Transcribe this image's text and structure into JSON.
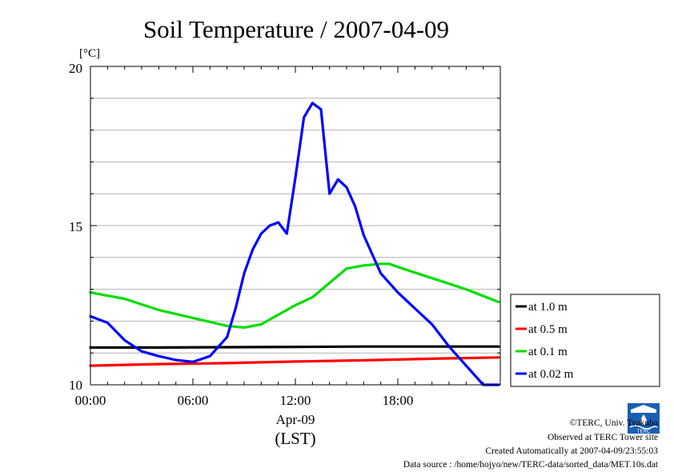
{
  "chart_data": {
    "type": "line",
    "title": "Soil Temperature / 2007-04-09",
    "ylabel": "[°C]",
    "xlabel_date": "Apr-09",
    "xlabel_zone": "(LST)",
    "ylim": [
      10,
      20
    ],
    "xlim": [
      0,
      24
    ],
    "grid": true,
    "legend_position": "right",
    "yticks": [
      "10",
      "15",
      "20"
    ],
    "xticks": [
      "00:00",
      "06:00",
      "12:00",
      "18:00"
    ],
    "series": [
      {
        "name": "at 1.0 m",
        "color": "#000000",
        "x": [
          0,
          4,
          8,
          12,
          16,
          20,
          23.9
        ],
        "y": [
          11.17,
          11.17,
          11.18,
          11.19,
          11.2,
          11.2,
          11.2
        ]
      },
      {
        "name": "at 0.5 m",
        "color": "#ff0000",
        "x": [
          0,
          4,
          8,
          12,
          16,
          20,
          23.9
        ],
        "y": [
          10.6,
          10.65,
          10.68,
          10.73,
          10.77,
          10.82,
          10.86
        ]
      },
      {
        "name": "at 0.1 m",
        "color": "#00dd00",
        "x": [
          0,
          2,
          4,
          6,
          8,
          9,
          10,
          11,
          12,
          13,
          14,
          15,
          16,
          17,
          17.5,
          18,
          20,
          22,
          23.9
        ],
        "y": [
          12.9,
          12.7,
          12.35,
          12.1,
          11.85,
          11.8,
          11.9,
          12.2,
          12.5,
          12.75,
          13.2,
          13.65,
          13.75,
          13.8,
          13.8,
          13.7,
          13.35,
          13.0,
          12.6
        ]
      },
      {
        "name": "at 0.02 m",
        "color": "#0000ff",
        "x": [
          0,
          1,
          2,
          3,
          4,
          5,
          6,
          7,
          8,
          8.5,
          9,
          9.5,
          10,
          10.5,
          11,
          11.5,
          12,
          12.5,
          13,
          13.5,
          14,
          14.5,
          15,
          15.5,
          16,
          17,
          18,
          19,
          20,
          21,
          22,
          23,
          23.9
        ],
        "y": [
          12.15,
          11.95,
          11.4,
          11.05,
          10.9,
          10.78,
          10.72,
          10.9,
          11.5,
          12.4,
          13.5,
          14.25,
          14.75,
          15.0,
          15.1,
          14.75,
          16.5,
          18.4,
          18.85,
          18.65,
          16.0,
          16.45,
          16.2,
          15.6,
          14.7,
          13.5,
          12.9,
          12.4,
          11.9,
          11.2,
          10.6,
          10.0,
          10.0
        ]
      }
    ]
  },
  "footer": {
    "copyright": "©TERC, Univ. Tsukuba",
    "observed": "Observed at TERC Tower site",
    "created": "Created Automatically at 2007-04-09/23:55:03",
    "source": "Data source : /home/hojyo/new/TERC-data/sorted_data/MET.10s.dat"
  },
  "logo_text": "TERC"
}
